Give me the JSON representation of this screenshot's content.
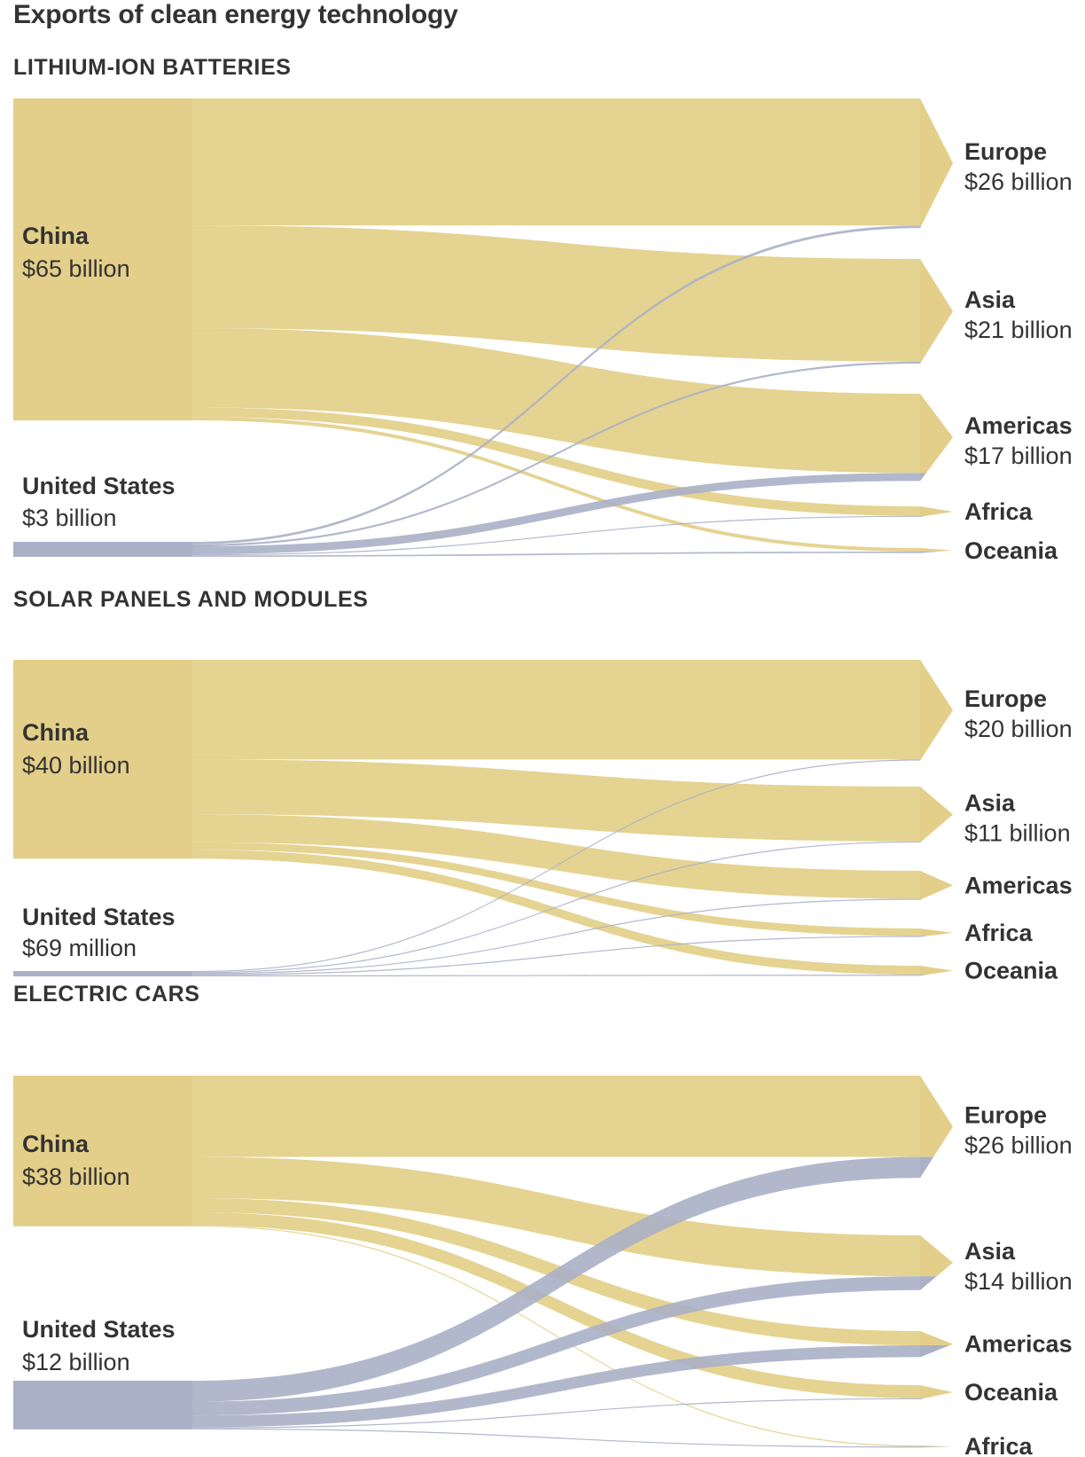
{
  "title": "Exports of clean energy technology",
  "colors": {
    "China": "#e3cf89",
    "United States": "#aab0c6",
    "text": "#333333"
  },
  "chart_data": [
    {
      "type": "sankey",
      "title": "LITHIUM-ION BATTERIES",
      "sources": [
        {
          "name": "China",
          "label": "$65 billion",
          "value": 65
        },
        {
          "name": "United States",
          "label": "$3 billion",
          "value": 3
        }
      ],
      "targets": [
        {
          "name": "Europe",
          "label": "$26 billion"
        },
        {
          "name": "Asia",
          "label": "$21 billion"
        },
        {
          "name": "Americas",
          "label": "$17 billion"
        },
        {
          "name": "Africa",
          "label": ""
        },
        {
          "name": "Oceania",
          "label": ""
        }
      ],
      "flows": [
        {
          "source": "China",
          "target": "Europe",
          "value": 25.5
        },
        {
          "source": "China",
          "target": "Asia",
          "value": 20.6
        },
        {
          "source": "China",
          "target": "Americas",
          "value": 15.9
        },
        {
          "source": "China",
          "target": "Africa",
          "value": 1.9
        },
        {
          "source": "China",
          "target": "Oceania",
          "value": 0.7
        },
        {
          "source": "United States",
          "target": "Europe",
          "value": 0.5
        },
        {
          "source": "United States",
          "target": "Asia",
          "value": 0.4
        },
        {
          "source": "United States",
          "target": "Americas",
          "value": 1.6
        },
        {
          "source": "United States",
          "target": "Africa",
          "value": 0.05
        },
        {
          "source": "United States",
          "target": "Oceania",
          "value": 0.3
        }
      ]
    },
    {
      "type": "sankey",
      "title": "SOLAR PANELS AND MODULES",
      "sources": [
        {
          "name": "China",
          "label": "$40 billion",
          "value": 40
        },
        {
          "name": "United States",
          "label": "$69 million",
          "value": 0.069
        }
      ],
      "targets": [
        {
          "name": "Europe",
          "label": "$20 billion"
        },
        {
          "name": "Asia",
          "label": "$11 billion"
        },
        {
          "name": "Americas",
          "label": ""
        },
        {
          "name": "Africa",
          "label": ""
        },
        {
          "name": "Oceania",
          "label": ""
        }
      ],
      "flows": [
        {
          "source": "China",
          "target": "Europe",
          "value": 20
        },
        {
          "source": "China",
          "target": "Asia",
          "value": 11
        },
        {
          "source": "China",
          "target": "Americas",
          "value": 5.6
        },
        {
          "source": "China",
          "target": "Africa",
          "value": 1.5
        },
        {
          "source": "China",
          "target": "Oceania",
          "value": 1.8
        },
        {
          "source": "United States",
          "target": "Europe",
          "value": 0.015
        },
        {
          "source": "United States",
          "target": "Asia",
          "value": 0.015
        },
        {
          "source": "United States",
          "target": "Americas",
          "value": 0.025
        },
        {
          "source": "United States",
          "target": "Africa",
          "value": 0.005
        },
        {
          "source": "United States",
          "target": "Oceania",
          "value": 0.009
        }
      ]
    },
    {
      "type": "sankey",
      "title": "ELECTRIC CARS",
      "sources": [
        {
          "name": "China",
          "label": "$38 billion",
          "value": 38
        },
        {
          "name": "United States",
          "label": "$12 billion",
          "value": 12
        }
      ],
      "targets": [
        {
          "name": "Europe",
          "label": "$26 billion"
        },
        {
          "name": "Asia",
          "label": "$14 billion"
        },
        {
          "name": "Americas",
          "label": ""
        },
        {
          "name": "Oceania",
          "label": ""
        },
        {
          "name": "Africa",
          "label": ""
        }
      ],
      "flows": [
        {
          "source": "China",
          "target": "Europe",
          "value": 20.6
        },
        {
          "source": "China",
          "target": "Asia",
          "value": 10.4
        },
        {
          "source": "China",
          "target": "Americas",
          "value": 3.6
        },
        {
          "source": "China",
          "target": "Oceania",
          "value": 3.3
        },
        {
          "source": "China",
          "target": "Africa",
          "value": 0.1
        },
        {
          "source": "United States",
          "target": "Europe",
          "value": 5.3
        },
        {
          "source": "United States",
          "target": "Asia",
          "value": 3.5
        },
        {
          "source": "United States",
          "target": "Americas",
          "value": 3.0
        },
        {
          "source": "United States",
          "target": "Oceania",
          "value": 0.1
        },
        {
          "source": "United States",
          "target": "Africa",
          "value": 0.05
        }
      ]
    }
  ]
}
